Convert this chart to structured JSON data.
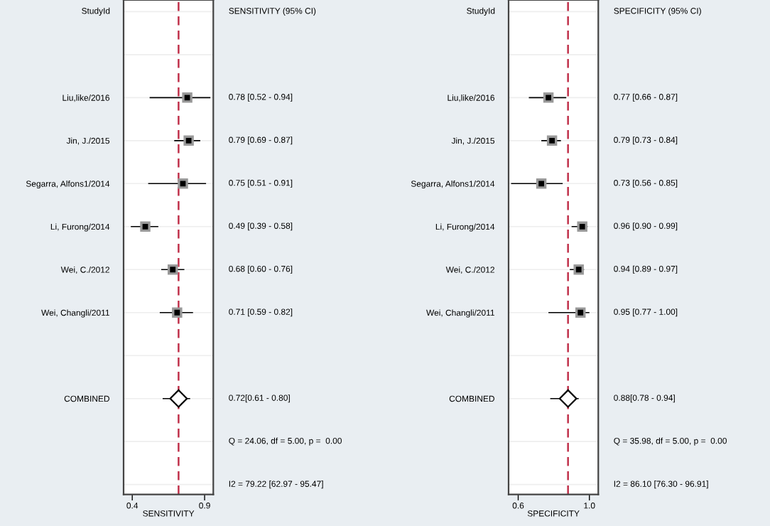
{
  "chart_data": [
    {
      "type": "scatter",
      "orientation": "horizontal",
      "xlabel": "SENSITIVITY",
      "categories": [
        null,
        null,
        "Liu,like/2016",
        "Jin, J./2015",
        "Segarra, Alfons1/2014",
        "Li, Furong/2014",
        "Wei, C./2012",
        "Wei, Changli/2011",
        null,
        "COMBINED",
        null,
        null
      ],
      "series": [
        {
          "color": "#000000",
          "marker": "square",
          "values": [
            null,
            null,
            0.78,
            0.79,
            0.75,
            0.49,
            0.68,
            0.71,
            null,
            null,
            null,
            null
          ],
          "errors": [
            null,
            null,
            [
              0.52,
              0.94
            ],
            [
              0.69,
              0.87
            ],
            [
              0.51,
              0.91
            ],
            [
              0.39,
              0.58
            ],
            [
              0.6,
              0.76
            ],
            [
              0.59,
              0.82
            ],
            null,
            null,
            null,
            null
          ],
          "value_labels": [
            null,
            null,
            "0.78 [0.52 - 0.94]",
            "0.79 [0.69 - 0.87]",
            "0.75 [0.51 - 0.91]",
            "0.49 [0.39 - 0.58]",
            "0.68 [0.60 - 0.76]",
            "0.71 [0.59 - 0.82]",
            null,
            null,
            null,
            null
          ]
        },
        {
          "color": "#000000",
          "marker": "diamond",
          "values": [
            null,
            null,
            null,
            null,
            null,
            null,
            null,
            null,
            null,
            0.72,
            null,
            null
          ],
          "errors": [
            null,
            null,
            null,
            null,
            null,
            null,
            null,
            null,
            null,
            [
              0.61,
              0.8
            ],
            null,
            null
          ]
        }
      ],
      "xlim": [
        0.34,
        0.96
      ],
      "xticks": [
        0.4,
        0.9
      ],
      "grid": "y",
      "ref_lines": [
        {
          "axis": "x",
          "value": 0.72,
          "color": "#c0304a",
          "line_style": "dashed"
        }
      ],
      "annotations": [
        "StudyId",
        "SENSITIVITY (95% CI)",
        "Q = 24.06, df = 5.00, p =  0.00",
        "I2 = 79.22 [62.97 - 95.47]",
        "0.72[0.61 - 0.80]"
      ]
    },
    {
      "type": "scatter",
      "orientation": "horizontal",
      "xlabel": "SPECIFICITY",
      "categories": [
        null,
        null,
        "Liu,like/2016",
        "Jin, J./2015",
        "Segarra, Alfons1/2014",
        "Li, Furong/2014",
        "Wei, C./2012",
        "Wei, Changli/2011",
        null,
        "COMBINED",
        null,
        null
      ],
      "series": [
        {
          "color": "#000000",
          "marker": "square",
          "values": [
            null,
            null,
            0.77,
            0.79,
            0.73,
            0.96,
            0.94,
            0.95,
            null,
            null,
            null,
            null
          ],
          "errors": [
            null,
            null,
            [
              0.66,
              0.87
            ],
            [
              0.73,
              0.84
            ],
            [
              0.56,
              0.85
            ],
            [
              0.9,
              0.99
            ],
            [
              0.89,
              0.97
            ],
            [
              0.77,
              1.0
            ],
            null,
            null,
            null,
            null
          ],
          "value_labels": [
            null,
            null,
            "0.77 [0.66 - 0.87]",
            "0.79 [0.73 - 0.84]",
            "0.73 [0.56 - 0.85]",
            "0.96 [0.90 - 0.99]",
            "0.94 [0.89 - 0.97]",
            "0.95 [0.77 - 1.00]",
            null,
            null,
            null,
            null
          ]
        },
        {
          "color": "#000000",
          "marker": "diamond",
          "values": [
            null,
            null,
            null,
            null,
            null,
            null,
            null,
            null,
            null,
            0.88,
            null,
            null
          ],
          "errors": [
            null,
            null,
            null,
            null,
            null,
            null,
            null,
            null,
            null,
            [
              0.78,
              0.94
            ],
            null,
            null
          ]
        }
      ],
      "xlim": [
        0.546,
        1.05
      ],
      "xticks": [
        0.6,
        {
          "value": 1.0,
          "label": "1.0"
        }
      ],
      "grid": "y",
      "ref_lines": [
        {
          "axis": "x",
          "value": 0.88,
          "color": "#c0304a",
          "line_style": "dashed"
        }
      ],
      "annotations": [
        "StudyId",
        "SPECIFICITY (95% CI)",
        "Q = 35.98, df = 5.00, p =  0.00",
        "I2 = 86.10 [76.30 - 96.91]",
        "0.88[0.78 - 0.94]"
      ]
    }
  ]
}
